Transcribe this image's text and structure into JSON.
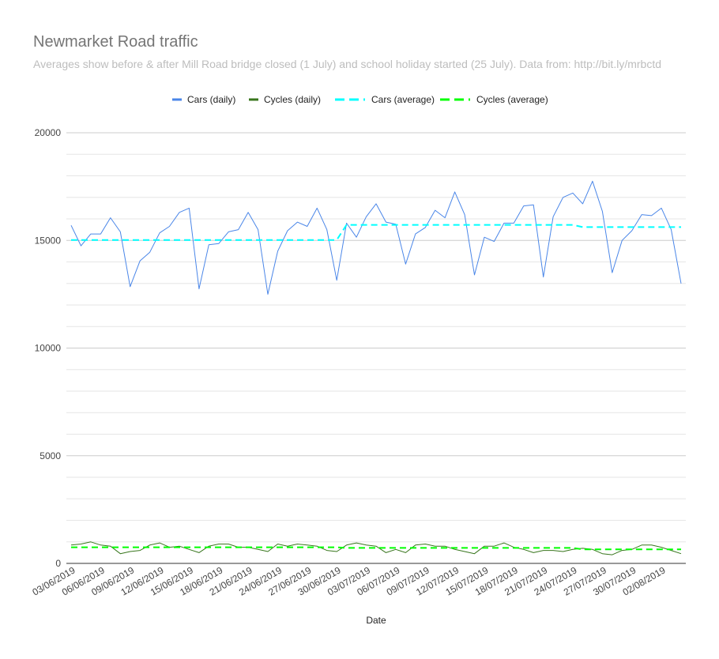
{
  "title": "Newmarket Road traffic",
  "subtitle": "Averages show before & after Mill Road bridge closed (1 July) and school holiday started (25 July). Data from: http://bit.ly/mrbctd",
  "chart_data": {
    "type": "line",
    "xlabel": "Date",
    "ylabel": "",
    "ylim": [
      0,
      20000
    ],
    "yticks": [
      0,
      5000,
      10000,
      15000,
      20000
    ],
    "grid": true,
    "legend_position": "top",
    "x": [
      "03/06/2019",
      "04/06/2019",
      "05/06/2019",
      "06/06/2019",
      "07/06/2019",
      "08/06/2019",
      "09/06/2019",
      "10/06/2019",
      "11/06/2019",
      "12/06/2019",
      "13/06/2019",
      "14/06/2019",
      "15/06/2019",
      "16/06/2019",
      "17/06/2019",
      "18/06/2019",
      "19/06/2019",
      "20/06/2019",
      "21/06/2019",
      "22/06/2019",
      "23/06/2019",
      "24/06/2019",
      "25/06/2019",
      "26/06/2019",
      "27/06/2019",
      "28/06/2019",
      "29/06/2019",
      "30/06/2019",
      "01/07/2019",
      "02/07/2019",
      "03/07/2019",
      "04/07/2019",
      "05/07/2019",
      "06/07/2019",
      "07/07/2019",
      "08/07/2019",
      "09/07/2019",
      "10/07/2019",
      "11/07/2019",
      "12/07/2019",
      "13/07/2019",
      "14/07/2019",
      "15/07/2019",
      "16/07/2019",
      "17/07/2019",
      "18/07/2019",
      "19/07/2019",
      "20/07/2019",
      "21/07/2019",
      "22/07/2019",
      "23/07/2019",
      "24/07/2019",
      "25/07/2019",
      "26/07/2019",
      "27/07/2019",
      "28/07/2019",
      "29/07/2019",
      "30/07/2019",
      "31/07/2019",
      "01/08/2019",
      "02/08/2019",
      "03/08/2019",
      "04/08/2019"
    ],
    "xtick_labels": [
      "03/06/2019",
      "06/06/2019",
      "09/06/2019",
      "12/06/2019",
      "15/06/2019",
      "18/06/2019",
      "21/06/2019",
      "24/06/2019",
      "27/06/2019",
      "30/06/2019",
      "03/07/2019",
      "06/07/2019",
      "09/07/2019",
      "12/07/2019",
      "15/07/2019",
      "18/07/2019",
      "21/07/2019",
      "24/07/2019",
      "27/07/2019",
      "30/07/2019",
      "02/08/2019"
    ],
    "series": [
      {
        "name": "Cars (daily)",
        "color": "#4a86e8",
        "dash": false,
        "values": [
          15700,
          14750,
          15300,
          15300,
          16050,
          15400,
          12850,
          14050,
          14450,
          15350,
          15650,
          16300,
          16500,
          12750,
          14800,
          14850,
          15400,
          15500,
          16300,
          15500,
          12500,
          14500,
          15450,
          15850,
          15650,
          16500,
          15500,
          13150,
          15800,
          15150,
          16100,
          16700,
          15850,
          15750,
          13900,
          15300,
          15600,
          16400,
          16050,
          17250,
          16200,
          13400,
          15150,
          14950,
          15800,
          15800,
          16600,
          16650,
          13300,
          16100,
          17000,
          17200,
          16700,
          17750,
          16350,
          13500,
          15000,
          15450,
          16200,
          16150,
          16500,
          15500,
          13000
        ]
      },
      {
        "name": "Cycles (daily)",
        "color": "#38761d",
        "dash": false,
        "values": [
          850,
          900,
          1000,
          850,
          800,
          450,
          550,
          600,
          850,
          950,
          750,
          800,
          650,
          500,
          800,
          900,
          900,
          750,
          750,
          650,
          550,
          900,
          800,
          900,
          850,
          800,
          600,
          550,
          850,
          950,
          850,
          800,
          500,
          650,
          500,
          850,
          900,
          800,
          800,
          650,
          550,
          450,
          800,
          800,
          950,
          750,
          650,
          500,
          600,
          600,
          550,
          650,
          700,
          650,
          450,
          400,
          600,
          650,
          850,
          850,
          750,
          600,
          450
        ]
      },
      {
        "name": "Cycles (average)",
        "color": "#00ff00",
        "dash": true,
        "values": [
          750,
          750,
          750,
          750,
          750,
          750,
          750,
          750,
          750,
          750,
          750,
          750,
          750,
          750,
          750,
          750,
          750,
          750,
          750,
          750,
          750,
          750,
          750,
          750,
          750,
          750,
          750,
          750,
          720,
          720,
          720,
          720,
          720,
          720,
          720,
          720,
          720,
          720,
          720,
          720,
          720,
          720,
          720,
          720,
          720,
          720,
          720,
          720,
          720,
          720,
          720,
          720,
          650,
          650,
          650,
          650,
          650,
          650,
          650,
          650,
          650,
          650,
          650
        ]
      },
      {
        "name": "Cars (average)",
        "color": "#00ffff",
        "dash": true,
        "values": [
          15020,
          15020,
          15020,
          15020,
          15020,
          15020,
          15020,
          15020,
          15020,
          15020,
          15020,
          15020,
          15020,
          15020,
          15020,
          15020,
          15020,
          15020,
          15020,
          15020,
          15020,
          15020,
          15020,
          15020,
          15020,
          15020,
          15020,
          15020,
          15720,
          15720,
          15720,
          15720,
          15720,
          15720,
          15720,
          15720,
          15720,
          15720,
          15720,
          15720,
          15720,
          15720,
          15720,
          15720,
          15720,
          15720,
          15720,
          15720,
          15720,
          15720,
          15720,
          15720,
          15620,
          15620,
          15620,
          15620,
          15620,
          15620,
          15620,
          15620,
          15620,
          15620,
          15620
        ]
      }
    ],
    "legend_order": [
      "Cars (daily)",
      "Cycles (daily)",
      "Cars (average)",
      "Cycles (average)"
    ]
  }
}
